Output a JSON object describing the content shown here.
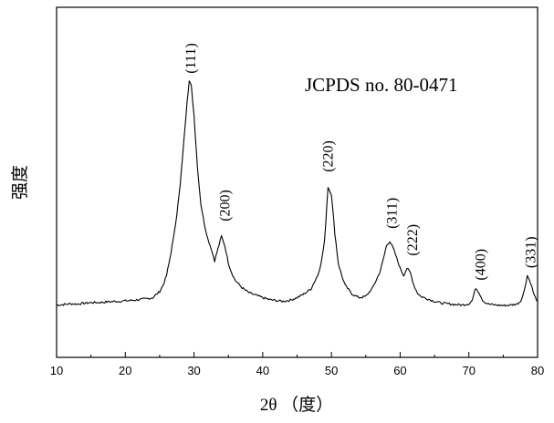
{
  "chart_data": {
    "type": "line",
    "title": "",
    "xlabel": "2θ （度）",
    "ylabel": "强度",
    "xlim": [
      10,
      80
    ],
    "ylim": [
      0,
      100
    ],
    "x_ticks": [
      10,
      20,
      30,
      40,
      50,
      60,
      70,
      80
    ],
    "y_ticks_shown": false,
    "grid": false,
    "legend": "none",
    "annotation_text": "JCPDS no. 80-0471",
    "line_color": "#000000",
    "series": [
      {
        "x": [
          10,
          11,
          12,
          13,
          14,
          15,
          16,
          17,
          18,
          19,
          20,
          21,
          22,
          23,
          24,
          25,
          25.5,
          26,
          26.5,
          27,
          27.5,
          28,
          28.5,
          29,
          29.3,
          29.6,
          30,
          30.5,
          31,
          31.5,
          32,
          32.5,
          33,
          33.5,
          34,
          34.5,
          35,
          35.5,
          36,
          37,
          38,
          39,
          40,
          41,
          42,
          43,
          44,
          45,
          46,
          47,
          48,
          48.5,
          49,
          49.5,
          50,
          50.5,
          51,
          51.5,
          52,
          53,
          54,
          55,
          56,
          57,
          57.5,
          58,
          58.5,
          59,
          59.5,
          60,
          60.5,
          61,
          61.5,
          62,
          62.5,
          63,
          64,
          65,
          66,
          67,
          68,
          69,
          70,
          70.5,
          71,
          71.5,
          72,
          72.5,
          73,
          74,
          75,
          76,
          77,
          77.5,
          78,
          78.5,
          79,
          79.5,
          80
        ],
        "y": [
          2.0,
          2.2,
          2.5,
          2.4,
          2.7,
          3.0,
          3.0,
          3.2,
          3.4,
          3.5,
          3.7,
          3.9,
          4.2,
          4.5,
          5.0,
          7.5,
          10,
          14,
          21,
          29,
          39,
          51,
          68,
          85,
          93,
          91,
          79,
          58,
          43,
          35,
          29,
          25,
          20,
          25,
          30,
          26,
          19,
          15,
          12,
          9,
          7,
          6,
          5,
          4.2,
          3.8,
          3.5,
          4.0,
          5.0,
          6.5,
          8.5,
          14,
          19,
          28,
          50,
          47,
          31,
          19,
          14,
          10,
          6.5,
          5.0,
          5.5,
          9,
          15,
          20,
          26,
          28,
          25,
          21,
          17,
          14,
          17,
          15,
          10,
          7.0,
          5.5,
          4.5,
          3.5,
          2.8,
          2.5,
          2.2,
          2.0,
          2.5,
          4,
          9,
          7,
          4,
          2.8,
          2.3,
          2.0,
          1.8,
          2.0,
          2.4,
          3.5,
          7,
          14,
          11,
          6,
          3.5
        ]
      }
    ],
    "peak_labels": [
      {
        "text": "(111)",
        "x": 29.5,
        "y": 96
      },
      {
        "text": "(200)",
        "x": 34.5,
        "y": 36
      },
      {
        "text": "(220)",
        "x": 49.5,
        "y": 56
      },
      {
        "text": "(311)",
        "x": 58.8,
        "y": 33
      },
      {
        "text": "(222)",
        "x": 61.8,
        "y": 22
      },
      {
        "text": "(400)",
        "x": 71.7,
        "y": 12
      },
      {
        "text": "(331)",
        "x": 79.0,
        "y": 17
      }
    ]
  }
}
